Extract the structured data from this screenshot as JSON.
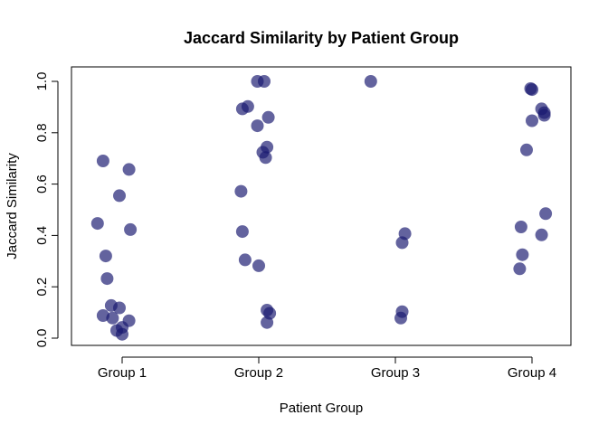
{
  "chart_data": {
    "type": "scatter",
    "title": "Jaccard Similarity by Patient Group",
    "xlabel": "Patient Group",
    "ylabel": "Jaccard Similarity",
    "categories": [
      "Group 1",
      "Group 2",
      "Group 3",
      "Group 4"
    ],
    "ylim": [
      0.0,
      1.0
    ],
    "yticks": [
      "0.0",
      "0.2",
      "0.4",
      "0.6",
      "0.8",
      "1.0"
    ],
    "grid": false,
    "point_color": "#191970",
    "jitter": true,
    "points": [
      {
        "group": "Group 1",
        "jx": -0.14,
        "y": 0.69
      },
      {
        "group": "Group 1",
        "jx": 0.05,
        "y": 0.657
      },
      {
        "group": "Group 1",
        "jx": -0.02,
        "y": 0.555
      },
      {
        "group": "Group 1",
        "jx": -0.18,
        "y": 0.447
      },
      {
        "group": "Group 1",
        "jx": 0.06,
        "y": 0.423
      },
      {
        "group": "Group 1",
        "jx": -0.12,
        "y": 0.32
      },
      {
        "group": "Group 1",
        "jx": -0.11,
        "y": 0.232
      },
      {
        "group": "Group 1",
        "jx": -0.08,
        "y": 0.127
      },
      {
        "group": "Group 1",
        "jx": -0.02,
        "y": 0.118
      },
      {
        "group": "Group 1",
        "jx": -0.14,
        "y": 0.088
      },
      {
        "group": "Group 1",
        "jx": -0.07,
        "y": 0.078
      },
      {
        "group": "Group 1",
        "jx": 0.05,
        "y": 0.068
      },
      {
        "group": "Group 1",
        "jx": 0.0,
        "y": 0.042
      },
      {
        "group": "Group 1",
        "jx": -0.04,
        "y": 0.03
      },
      {
        "group": "Group 1",
        "jx": 0.0,
        "y": 0.015
      },
      {
        "group": "Group 2",
        "jx": -0.01,
        "y": 1.0
      },
      {
        "group": "Group 2",
        "jx": 0.04,
        "y": 1.0
      },
      {
        "group": "Group 2",
        "jx": -0.08,
        "y": 0.902
      },
      {
        "group": "Group 2",
        "jx": -0.12,
        "y": 0.893
      },
      {
        "group": "Group 2",
        "jx": 0.07,
        "y": 0.86
      },
      {
        "group": "Group 2",
        "jx": -0.01,
        "y": 0.827
      },
      {
        "group": "Group 2",
        "jx": 0.06,
        "y": 0.744
      },
      {
        "group": "Group 2",
        "jx": 0.03,
        "y": 0.724
      },
      {
        "group": "Group 2",
        "jx": 0.05,
        "y": 0.703
      },
      {
        "group": "Group 2",
        "jx": -0.13,
        "y": 0.572
      },
      {
        "group": "Group 2",
        "jx": -0.12,
        "y": 0.415
      },
      {
        "group": "Group 2",
        "jx": -0.1,
        "y": 0.305
      },
      {
        "group": "Group 2",
        "jx": 0.0,
        "y": 0.282
      },
      {
        "group": "Group 2",
        "jx": 0.06,
        "y": 0.109
      },
      {
        "group": "Group 2",
        "jx": 0.08,
        "y": 0.097
      },
      {
        "group": "Group 2",
        "jx": 0.06,
        "y": 0.061
      },
      {
        "group": "Group 3",
        "jx": -0.18,
        "y": 1.0
      },
      {
        "group": "Group 3",
        "jx": 0.07,
        "y": 0.407
      },
      {
        "group": "Group 3",
        "jx": 0.05,
        "y": 0.372
      },
      {
        "group": "Group 3",
        "jx": 0.05,
        "y": 0.103
      },
      {
        "group": "Group 3",
        "jx": 0.04,
        "y": 0.078
      },
      {
        "group": "Group 4",
        "jx": -0.01,
        "y": 0.972
      },
      {
        "group": "Group 4",
        "jx": 0.0,
        "y": 0.968
      },
      {
        "group": "Group 4",
        "jx": 0.07,
        "y": 0.893
      },
      {
        "group": "Group 4",
        "jx": 0.09,
        "y": 0.878
      },
      {
        "group": "Group 4",
        "jx": 0.09,
        "y": 0.868
      },
      {
        "group": "Group 4",
        "jx": 0.0,
        "y": 0.847
      },
      {
        "group": "Group 4",
        "jx": -0.04,
        "y": 0.733
      },
      {
        "group": "Group 4",
        "jx": 0.1,
        "y": 0.485
      },
      {
        "group": "Group 4",
        "jx": -0.08,
        "y": 0.433
      },
      {
        "group": "Group 4",
        "jx": 0.07,
        "y": 0.402
      },
      {
        "group": "Group 4",
        "jx": -0.07,
        "y": 0.325
      },
      {
        "group": "Group 4",
        "jx": -0.09,
        "y": 0.27
      }
    ]
  }
}
